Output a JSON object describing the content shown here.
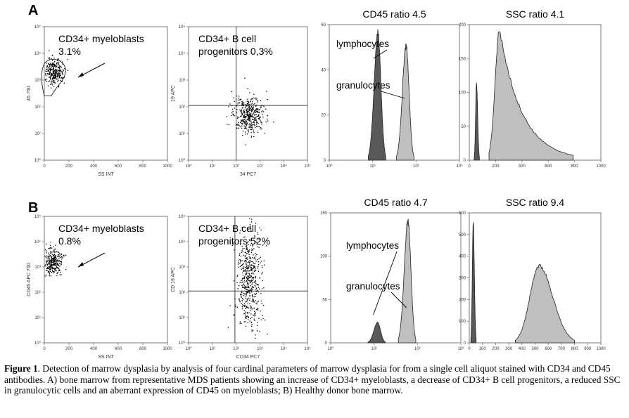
{
  "panel_labels": {
    "a": "A",
    "b": "B"
  },
  "caption": {
    "label": "Figure 1",
    "text": ". Detection of marrow dysplasia by analysis of four cardinal parameters of marrow dysplasia for from a single cell aliquot stained with CD34 and CD45 antibodies. A) bone marrow from representative MDS patients showing an increase of CD34+ myeloblasts, a decrease of CD34+ B cell progenitors, a reduced SSC in granulocytic cells and an aberrant expression of CD45 on myeloblasts; B) Healthy donor bone marrow."
  },
  "colors": {
    "dark_peak": "#595959",
    "light_peak": "#bfbfbf",
    "dots": "#000000"
  },
  "chart_data": [
    {
      "type": "scatter",
      "row": "A",
      "col": 1,
      "xlabel": "SS INT",
      "ylabel": "45 750",
      "x_ticks": [
        "0",
        "200",
        "400",
        "600",
        "800",
        "1000"
      ],
      "xlim": [
        0,
        1000
      ],
      "y_scale": "log",
      "y_ticks": [
        "10⁰",
        "10¹",
        "10²",
        "10³",
        "10⁴",
        "10⁵"
      ],
      "ylim": [
        0,
        5
      ],
      "annotation": [
        "CD34+ myeloblasts",
        "3.1%"
      ],
      "population": {
        "x_center": 80,
        "y_center_log": 3.3
      },
      "grid": false
    },
    {
      "type": "scatter",
      "row": "A",
      "col": 2,
      "xlabel": "34 PC7",
      "ylabel": "19 APC",
      "x_scale": "log",
      "x_ticks": [
        "10⁰",
        "10¹",
        "10²",
        "10³",
        "10⁴",
        "10⁵"
      ],
      "xlim": [
        0,
        5
      ],
      "y_scale": "log",
      "y_ticks": [
        "10⁰",
        "10¹",
        "10²",
        "10³",
        "10⁴",
        "10⁵"
      ],
      "ylim": [
        0,
        5
      ],
      "annotation": [
        "CD34+ B cell",
        "progenitors 0,3%"
      ],
      "quadrant": {
        "x_log": 2.0,
        "y_log": 2.05
      },
      "population": {
        "x_center_log": 2.55,
        "y_center_log": 1.7
      },
      "grid": false
    },
    {
      "type": "area",
      "row": "A",
      "col": 3,
      "title": "CD45 ratio 4.5",
      "x_scale": "log",
      "x_ticks": [
        "10⁰",
        "10¹",
        "10²",
        "10³"
      ],
      "xlim": [
        0,
        3
      ],
      "y_ticks": [
        "0",
        "20",
        "40",
        "60"
      ],
      "ylim": [
        0,
        70
      ],
      "series": [
        {
          "name": "lymphocytes",
          "center_log": 1.12,
          "peak": 66
        },
        {
          "name": "granulocytes",
          "center_log": 1.77,
          "peak": 59
        }
      ],
      "grid": false
    },
    {
      "type": "area",
      "row": "A",
      "col": 4,
      "title": "SSC ratio 4.1",
      "x_ticks": [
        "0",
        "200",
        "400",
        "600",
        "800",
        "1000"
      ],
      "xlim": [
        0,
        1000
      ],
      "y_ticks": [
        "0",
        "50",
        "100",
        "150",
        "200"
      ],
      "ylim": [
        0,
        240
      ],
      "series": [
        {
          "center": 55,
          "peak": 135
        },
        {
          "center": 230,
          "peak": 232
        }
      ],
      "grid": false
    },
    {
      "type": "scatter",
      "row": "B",
      "col": 1,
      "xlabel": "SS INT",
      "ylabel": "CD45 APC 750",
      "x_ticks": [
        "0",
        "200",
        "400",
        "600",
        "800",
        "1000"
      ],
      "xlim": [
        0,
        1000
      ],
      "y_scale": "log",
      "y_ticks": [
        "10⁰",
        "10¹",
        "10²",
        "10³",
        "10⁴",
        "10⁵"
      ],
      "ylim": [
        0,
        5
      ],
      "annotation": [
        "CD34+ myeloblasts",
        "0.8%"
      ],
      "population": {
        "x_center": 70,
        "y_center_log": 3.2
      },
      "grid": false
    },
    {
      "type": "scatter",
      "row": "B",
      "col": 2,
      "xlabel": "CD34 PC7",
      "ylabel": "CD 19 APC",
      "x_scale": "log",
      "x_ticks": [
        "10⁰",
        "10¹",
        "10²",
        "10³",
        "10⁴",
        "10⁵"
      ],
      "xlim": [
        0,
        5
      ],
      "y_scale": "log",
      "y_ticks": [
        "10⁰",
        "10¹",
        "10²",
        "10³",
        "10⁴",
        "10⁵"
      ],
      "ylim": [
        0,
        5
      ],
      "annotation": [
        "CD34+ B cell",
        "progenitors 52%"
      ],
      "quadrant": {
        "x_log": 1.95,
        "y_log": 2.05
      },
      "population": {
        "x_center_log": 2.55,
        "y_center_log": 3.0
      },
      "grid": false
    },
    {
      "type": "area",
      "row": "B",
      "col": 3,
      "title": "CD45 ratio 4.7",
      "x_scale": "log",
      "x_ticks": [
        "10⁰",
        "10¹",
        "10²",
        "10³"
      ],
      "xlim": [
        0,
        3
      ],
      "y_ticks": [
        "0",
        "50",
        "100",
        "150"
      ],
      "ylim": [
        0,
        160
      ],
      "series": [
        {
          "name": "lymphocytes",
          "center_log": 1.08,
          "peak": 25
        },
        {
          "name": "granulocytes",
          "center_log": 1.78,
          "peak": 150
        }
      ],
      "grid": false
    },
    {
      "type": "area",
      "row": "B",
      "col": 4,
      "title": "SSC ratio 9.4",
      "x_ticks": [
        "0",
        "100",
        "200",
        "300",
        "400",
        "500",
        "600",
        "700",
        "800",
        "900",
        "1000"
      ],
      "xlim": [
        0,
        1000
      ],
      "y_ticks": [
        "0",
        "100",
        "200",
        "300",
        "400",
        "500",
        "600"
      ],
      "ylim": [
        0,
        650
      ],
      "series": [
        {
          "center": 30,
          "peak": 600
        },
        {
          "center": 530,
          "peak": 385
        }
      ],
      "grid": false
    }
  ]
}
